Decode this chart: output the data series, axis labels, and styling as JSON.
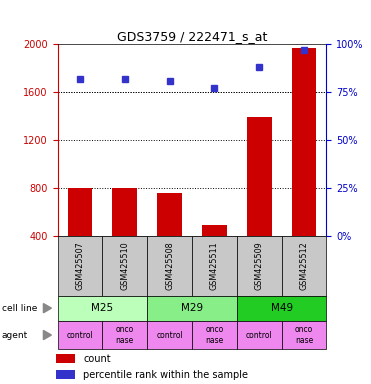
{
  "title": "GDS3759 / 222471_s_at",
  "samples": [
    "GSM425507",
    "GSM425510",
    "GSM425508",
    "GSM425511",
    "GSM425509",
    "GSM425512"
  ],
  "counts": [
    800,
    800,
    760,
    490,
    1390,
    1970
  ],
  "percentile_ranks": [
    82,
    82,
    81,
    77,
    88,
    97
  ],
  "cell_lines": [
    {
      "label": "M25",
      "span": [
        0,
        2
      ],
      "color": "#bbffbb"
    },
    {
      "label": "M29",
      "span": [
        2,
        4
      ],
      "color": "#88ee88"
    },
    {
      "label": "M49",
      "span": [
        4,
        6
      ],
      "color": "#22cc22"
    }
  ],
  "agents": [
    "control",
    "onco\nnase",
    "control",
    "onco\nnase",
    "control",
    "onco\nnase"
  ],
  "agent_color": "#ee88ee",
  "ylim_left": [
    400,
    2000
  ],
  "ylim_right": [
    0,
    100
  ],
  "yticks_left": [
    400,
    800,
    1200,
    1600,
    2000
  ],
  "yticks_right": [
    0,
    25,
    50,
    75,
    100
  ],
  "bar_color": "#cc0000",
  "dot_color": "#3333cc",
  "bar_width": 0.55,
  "sample_box_color": "#c8c8c8",
  "left_axis_color": "#cc0000",
  "right_axis_color": "#0000cc",
  "n_samples": 6
}
